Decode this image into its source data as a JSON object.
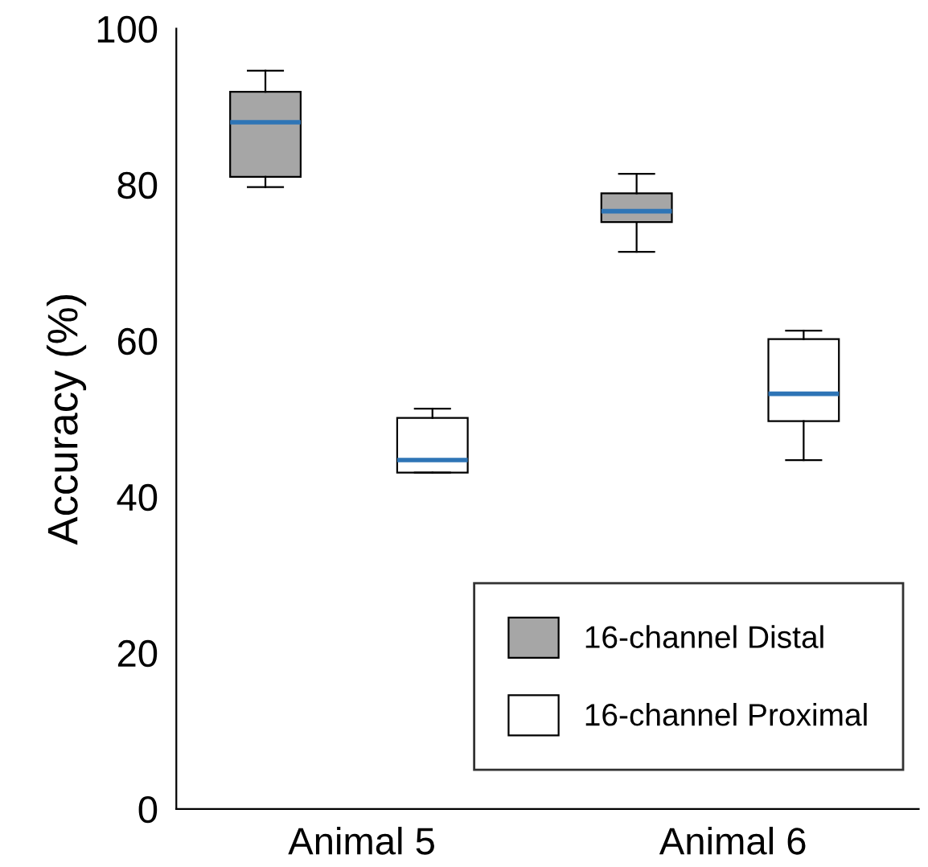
{
  "chart_data": {
    "type": "box",
    "ylabel": "Accuracy (%)",
    "categories": [
      "Animal 5",
      "Animal 6"
    ],
    "ylim": [
      0,
      100
    ],
    "yticks": [
      0,
      20,
      40,
      60,
      80,
      100
    ],
    "grid": false,
    "legend": "bottom right",
    "series": [
      {
        "name": "16-channel Distal",
        "color": "#a6a6a6",
        "boxes": [
          {
            "low": 79.7,
            "q1": 81,
            "median": 88,
            "q3": 91.9,
            "high": 94.6
          },
          {
            "low": 71.4,
            "q1": 75.2,
            "median": 76.6,
            "q3": 78.9,
            "high": 81.4
          }
        ]
      },
      {
        "name": "16-channel Proximal",
        "color": "#ffffff",
        "boxes": [
          {
            "low": 43.1,
            "q1": 43.1,
            "median": 44.7,
            "q3": 50.1,
            "high": 51.3
          },
          {
            "low": 44.7,
            "q1": 49.7,
            "median": 53.2,
            "q3": 60.2,
            "high": 61.3
          }
        ]
      }
    ]
  }
}
